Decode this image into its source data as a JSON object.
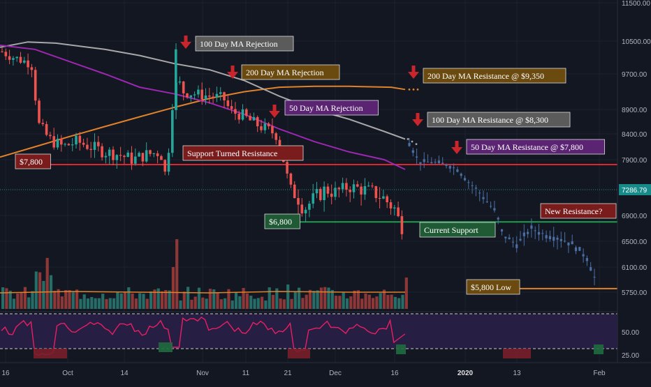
{
  "chart_data": {
    "type": "candlestick",
    "title": "",
    "xlabel": "",
    "ylabel": "",
    "ylim": [
      5600,
      11500
    ],
    "price_ticks": [
      "11500.00",
      "10500.00",
      "9700.00",
      "8900.00",
      "8400.00",
      "7900.00",
      "7286.79",
      "6900.00",
      "6500.00",
      "6100.00",
      "5750.00"
    ],
    "current_price": 7286.79,
    "rsi_ticks": [
      "50.00",
      "25.00"
    ],
    "x_ticks": [
      "16",
      "Oct",
      "14",
      "Nov",
      "11",
      "21",
      "Dec",
      "16",
      "2020",
      "13",
      "Feb"
    ],
    "levels": [
      {
        "name": "red-resistance",
        "price": 7800,
        "color": "#e0252f"
      },
      {
        "name": "green-support",
        "price": 6800,
        "color": "#1f9e4e"
      },
      {
        "name": "orange-low",
        "price": 5800,
        "color": "#e0822a"
      }
    ],
    "moving_averages": [
      {
        "name": "200 Day MA",
        "color": "#e0822a"
      },
      {
        "name": "100 Day MA",
        "color": "#a8a8a8"
      },
      {
        "name": "50 Day MA",
        "color": "#9c27b0"
      }
    ],
    "annotations": [
      {
        "text": "100 Day MA Rejection",
        "bg": "#5b5b5b"
      },
      {
        "text": "200 Day MA Rejection",
        "bg": "#6b4a10"
      },
      {
        "text": "200 Day MA Resistance @ $9,350",
        "bg": "#6b4a10"
      },
      {
        "text": "50 Day MA Rejection",
        "bg": "#5b2472"
      },
      {
        "text": "100 Day MA Resistance @ $8,300",
        "bg": "#5b5b5b"
      },
      {
        "text": "50 Day MA Resistance @ $7,800",
        "bg": "#5b2472"
      },
      {
        "text": "$7,800",
        "bg": "#7a1c1c"
      },
      {
        "text": "Support Turned Resistance",
        "bg": "#7a1c1c"
      },
      {
        "text": "$6,800",
        "bg": "#1f5a35"
      },
      {
        "text": "Current Support",
        "bg": "#1f5a35"
      },
      {
        "text": "New Resistance?",
        "bg": "#7a1c1c"
      },
      {
        "text": "$5,800 Low",
        "bg": "#6b4a10"
      }
    ],
    "colors": {
      "up": "#26a69a",
      "down": "#ef5350",
      "projection": "#4a6fa5",
      "rsi": "#e91e63",
      "rsi_band": "#2a1f47",
      "background": "#131722"
    }
  }
}
